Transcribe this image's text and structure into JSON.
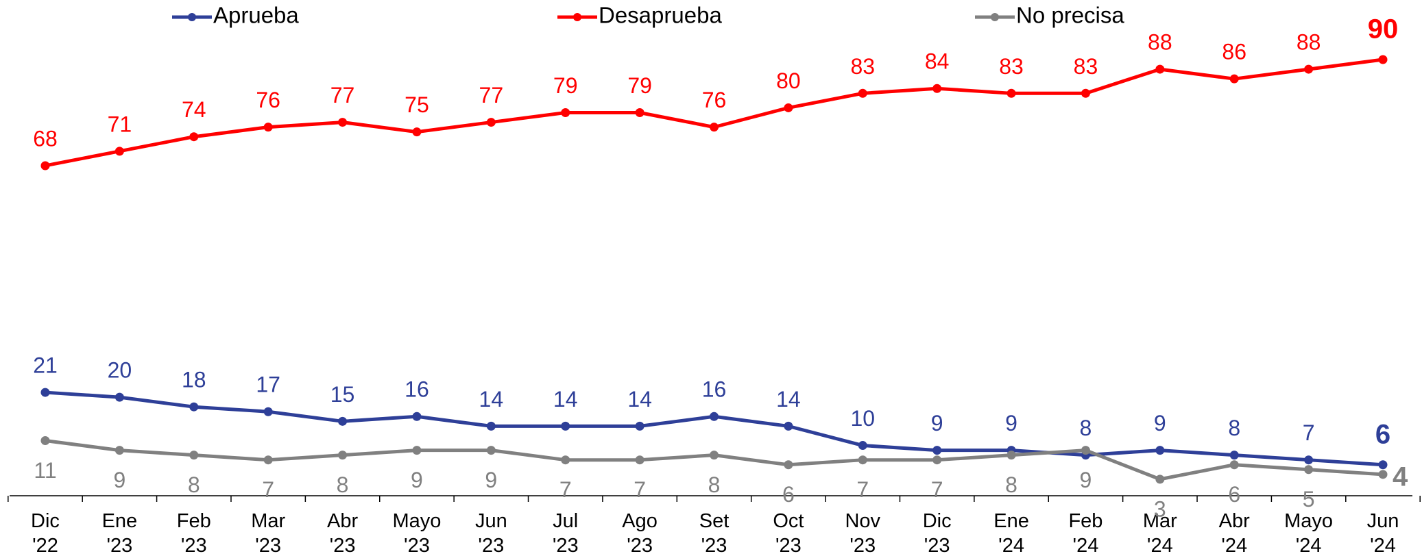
{
  "chart_data": {
    "type": "line",
    "categories": [
      [
        "Dic",
        "'22"
      ],
      [
        "Ene",
        "'23"
      ],
      [
        "Feb",
        "'23"
      ],
      [
        "Mar",
        "'23"
      ],
      [
        "Abr",
        "'23"
      ],
      [
        "Mayo",
        "'23"
      ],
      [
        "Jun",
        "'23"
      ],
      [
        "Jul",
        "'23"
      ],
      [
        "Ago",
        "'23"
      ],
      [
        "Set",
        "'23"
      ],
      [
        "Oct",
        "'23"
      ],
      [
        "Nov",
        "'23"
      ],
      [
        "Dic",
        "'23"
      ],
      [
        "Ene",
        "'24"
      ],
      [
        "Feb",
        "'24"
      ],
      [
        "Mar",
        "'24"
      ],
      [
        "Abr",
        "'24"
      ],
      [
        "Mayo",
        "'24"
      ],
      [
        "Jun",
        "'24"
      ]
    ],
    "series": [
      {
        "name": "Aprueba",
        "color": "#2e3f98",
        "values": [
          21,
          20,
          18,
          17,
          15,
          16,
          14,
          14,
          14,
          16,
          14,
          10,
          9,
          9,
          8,
          9,
          8,
          7,
          6
        ]
      },
      {
        "name": "Desaprueba",
        "color": "#ff0000",
        "values": [
          68,
          71,
          74,
          76,
          77,
          75,
          77,
          79,
          79,
          76,
          80,
          83,
          84,
          83,
          83,
          88,
          86,
          88,
          90
        ]
      },
      {
        "name": "No precisa",
        "color": "#808080",
        "values": [
          11,
          9,
          8,
          7,
          8,
          9,
          9,
          7,
          7,
          8,
          6,
          7,
          7,
          8,
          9,
          3,
          6,
          5,
          4
        ]
      }
    ],
    "ylim": [
      0,
      90
    ]
  }
}
